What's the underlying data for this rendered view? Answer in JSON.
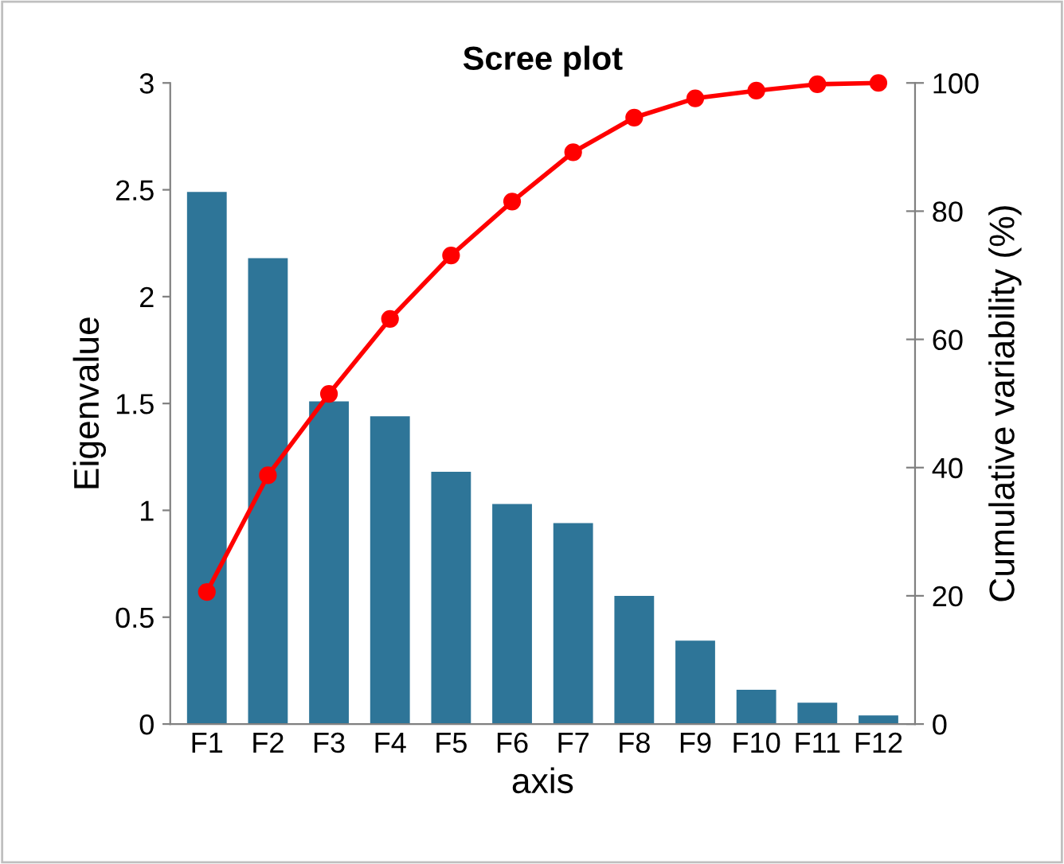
{
  "chart_data": {
    "type": "bar",
    "title": "Scree plot",
    "xlabel": "axis",
    "ylabel": "Eigenvalue",
    "y2label": "Cumulative variability (%)",
    "categories": [
      "F1",
      "F2",
      "F3",
      "F4",
      "F5",
      "F6",
      "F7",
      "F8",
      "F9",
      "F10",
      "F11",
      "F12"
    ],
    "series": [
      {
        "color": "#2e7598",
        "values": [
          2.49,
          2.18,
          1.51,
          1.44,
          1.18,
          1.03,
          0.94,
          0.6,
          0.39,
          0.16,
          0.1,
          0.04
        ]
      },
      {
        "type": "line",
        "axis": "y2",
        "color": "#ff0000",
        "marker": "circle",
        "line_style": "solid",
        "values": [
          20.6,
          38.8,
          51.5,
          63.2,
          73.1,
          81.5,
          89.2,
          94.6,
          97.6,
          98.8,
          99.8,
          100
        ]
      }
    ],
    "ylim": [
      0,
      3
    ],
    "yticks": [
      0,
      {
        "value": 0.5,
        "label": "0.5"
      },
      1,
      {
        "value": 1.5,
        "label": "1.5"
      },
      2,
      {
        "value": 2.5,
        "label": "2.5"
      },
      3
    ],
    "y2lim": [
      0,
      100
    ],
    "y2ticks": [
      0,
      20,
      40,
      60,
      80,
      100
    ],
    "grid": false,
    "legend": false
  }
}
